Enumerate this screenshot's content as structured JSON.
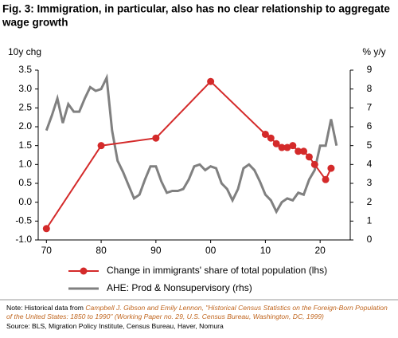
{
  "chart_data": {
    "type": "line",
    "title_lines": [
      "Fig. 3: Immigration, in particular, also has no clear relationship to aggregate",
      "wage growth"
    ],
    "y_label": "10y chg",
    "y2_label": "% y/y",
    "xlim": [
      1968.5,
      2025.5
    ],
    "xticks": [
      {
        "value": 1970,
        "label": "70"
      },
      {
        "value": 1980,
        "label": "80"
      },
      {
        "value": 1990,
        "label": "90"
      },
      {
        "value": 2000,
        "label": "00"
      },
      {
        "value": 2010,
        "label": "10"
      },
      {
        "value": 2020,
        "label": "20"
      }
    ],
    "ylim": [
      -1.0,
      3.5
    ],
    "yticks": [
      {
        "value": -1.0,
        "label": "-1.0"
      },
      {
        "value": -0.5,
        "label": "-0.5"
      },
      {
        "value": 0,
        "label": "0.0"
      },
      {
        "value": 0.5,
        "label": "0.5"
      },
      {
        "value": 1.0,
        "label": "1.0"
      },
      {
        "value": 1.5,
        "label": "1.5"
      },
      {
        "value": 2.0,
        "label": "2.0"
      },
      {
        "value": 2.5,
        "label": "2.5"
      },
      {
        "value": 3.0,
        "label": "3.0"
      },
      {
        "value": 3.5,
        "label": "3.5"
      }
    ],
    "y2lim": [
      0,
      9
    ],
    "y2ticks": [
      0,
      1,
      2,
      3,
      4,
      5,
      6,
      7,
      8,
      9
    ],
    "series": [
      {
        "name": "Change in immigrants' share of total population (lhs)",
        "color": "#d42a2a",
        "markers": true,
        "x": [
          1970,
          1980,
          1990,
          2000,
          2010,
          2011,
          2012,
          2013,
          2014,
          2015,
          2016,
          2017,
          2018,
          2019,
          2021,
          2022
        ],
        "values": [
          -0.7,
          1.5,
          1.7,
          3.2,
          1.8,
          1.7,
          1.55,
          1.45,
          1.45,
          1.5,
          1.35,
          1.35,
          1.2,
          1.0,
          0.6,
          0.9
        ]
      },
      {
        "name": "AHE: Prod & Nonsupervisory (rhs)",
        "color": "#808080",
        "markers": false,
        "axis": "y2",
        "x": [
          1970,
          1971,
          1972,
          1973,
          1974,
          1975,
          1976,
          1977,
          1978,
          1979,
          1980,
          1981,
          1982,
          1983,
          1984,
          1985,
          1986,
          1987,
          1988,
          1989,
          1990,
          1991,
          1992,
          1993,
          1994,
          1995,
          1996,
          1997,
          1998,
          1999,
          2000,
          2001,
          2002,
          2003,
          2004,
          2005,
          2006,
          2007,
          2008,
          2009,
          2010,
          2011,
          2012,
          2013,
          2014,
          2015,
          2016,
          2017,
          2018,
          2019,
          2020,
          2021,
          2022,
          2023
        ],
        "values": [
          5.8,
          6.6,
          7.5,
          6.2,
          7.2,
          6.8,
          6.8,
          7.5,
          8.1,
          7.9,
          8.0,
          8.6,
          5.8,
          4.2,
          3.6,
          2.9,
          2.2,
          2.4,
          3.2,
          3.9,
          3.9,
          3.1,
          2.5,
          2.6,
          2.6,
          2.7,
          3.2,
          3.9,
          4.0,
          3.7,
          3.9,
          3.8,
          3.0,
          2.7,
          2.1,
          2.7,
          3.8,
          4.0,
          3.7,
          3.1,
          2.4,
          2.1,
          1.5,
          2.0,
          2.2,
          2.1,
          2.5,
          2.4,
          3.2,
          3.7,
          5.0,
          5.0,
          6.4,
          5.0
        ]
      }
    ]
  },
  "notes": {
    "prefix": "Note: Historical data from ",
    "citation": "Campbell J. Gibson and Emily Lennon, \"Historical Census Statistics on the Foreign-Born Population of the United States: 1850 to 1990\" (Working Paper no. 29, U.S. Census Bureau, Washington, DC, 1999)",
    "source": "Source: BLS, Migration Policy Institute, Census Bureau, Haver, Nomura"
  }
}
